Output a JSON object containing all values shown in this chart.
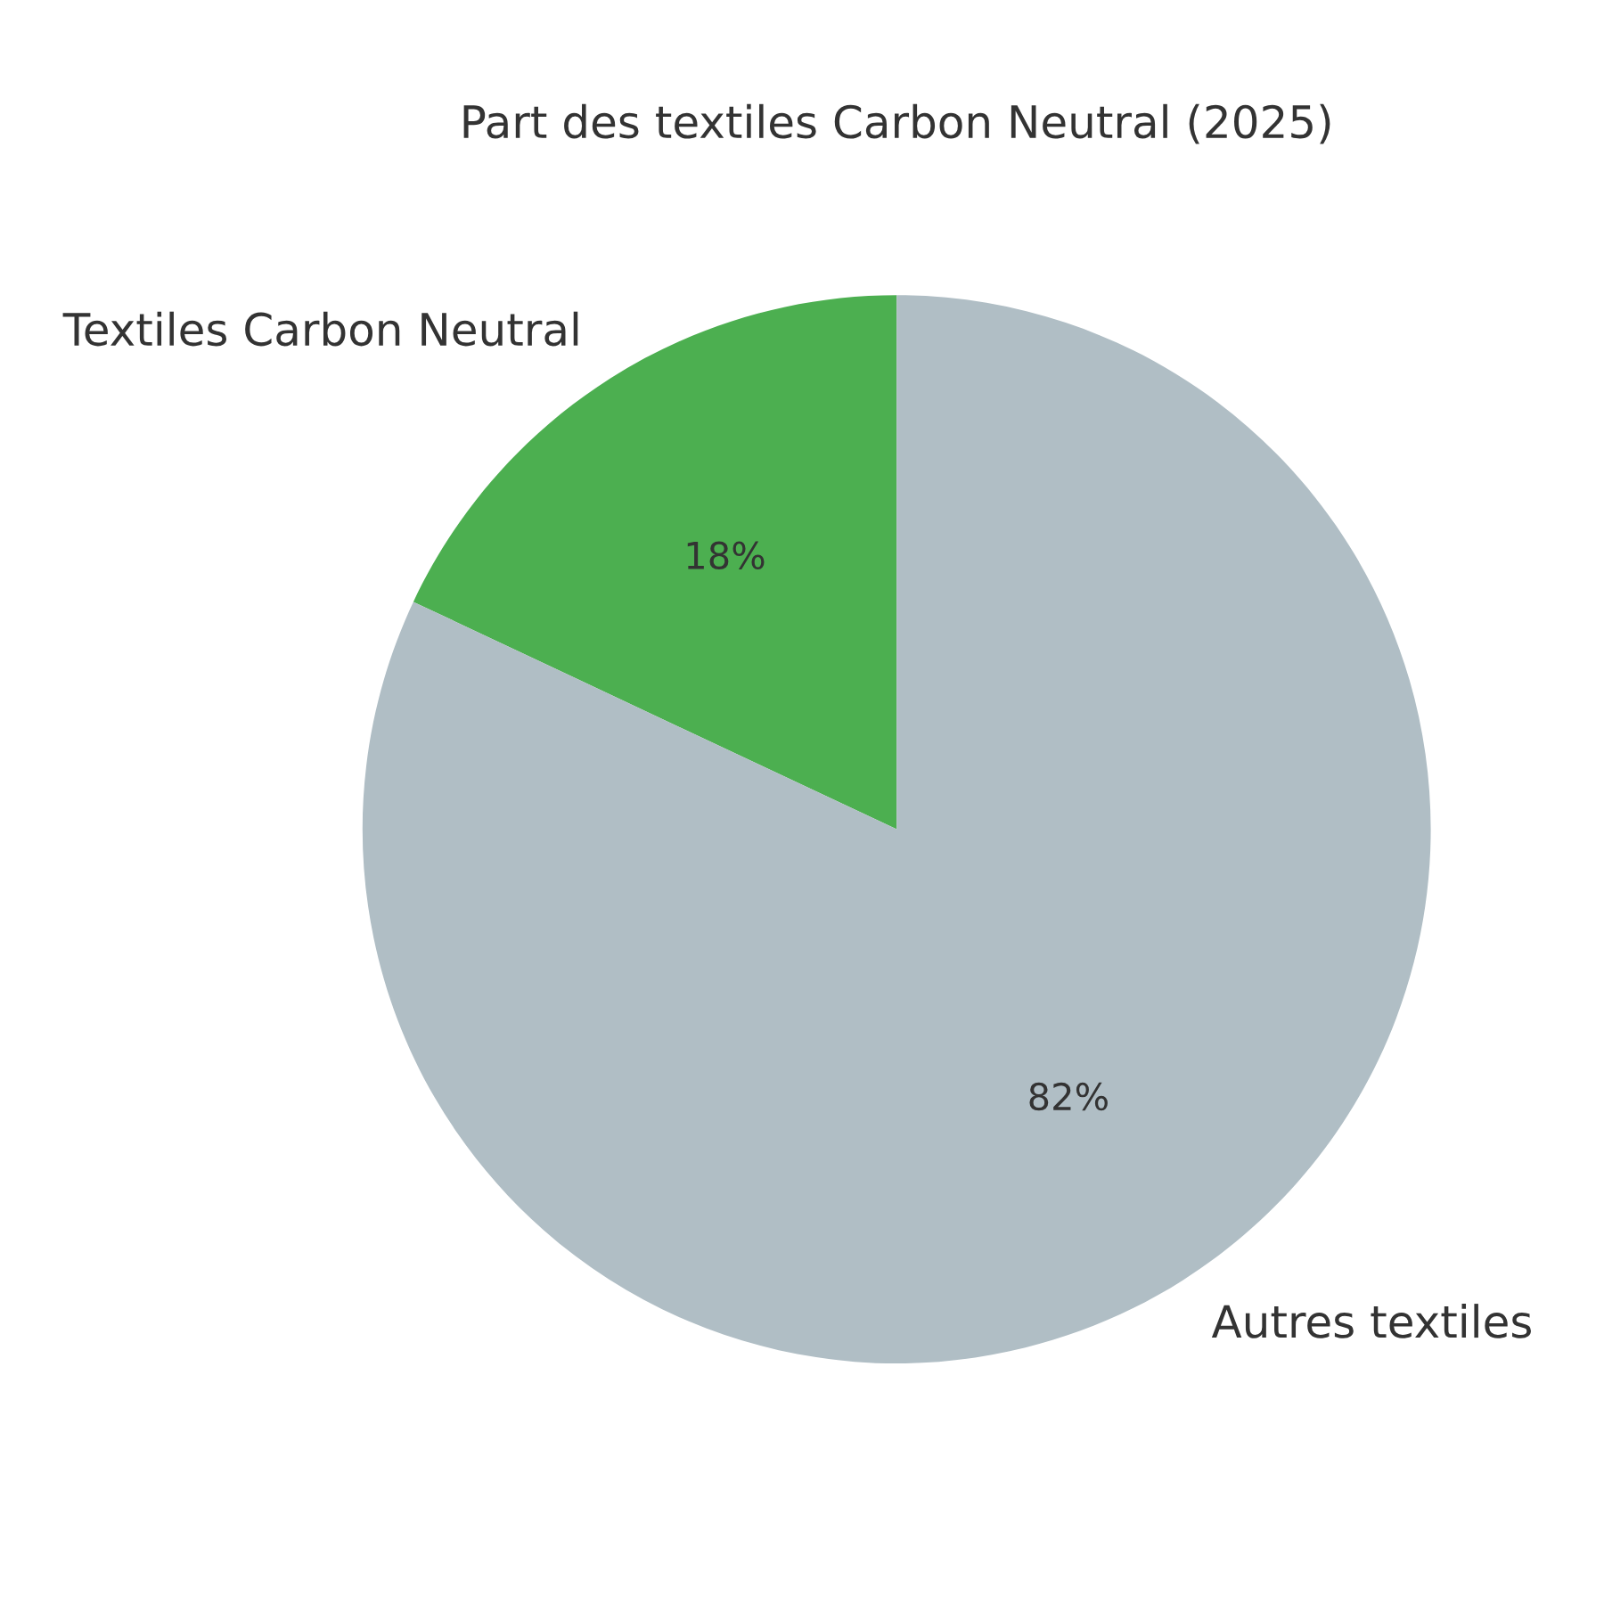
{
  "chart_data": {
    "type": "pie",
    "title": "Part des textiles Carbon Neutral (2025)",
    "categories": [
      "Textiles Carbon Neutral",
      "Autres textiles"
    ],
    "values": [
      18,
      82
    ],
    "colors": [
      "#4caf50",
      "#b0bec5"
    ],
    "value_labels": [
      "18%",
      "82%"
    ]
  }
}
